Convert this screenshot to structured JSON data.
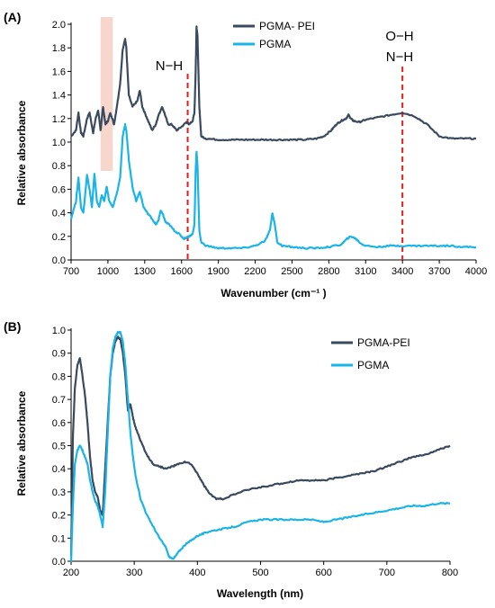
{
  "colors": {
    "pgma_pei": "#3a4a5e",
    "pgma": "#1ab4e8",
    "marker": "#e01e1e",
    "highlight": "#f7d7cc"
  },
  "chart_data": [
    {
      "type": "line",
      "panel_label": "(A)",
      "xlabel": "Wavenumber (cm⁻¹ )",
      "ylabel": "Relative absorbance",
      "xlim": [
        700,
        4000
      ],
      "ylim": [
        0.0,
        2.0
      ],
      "xticks": [
        "700",
        "1000",
        "1300",
        "1600",
        "1900",
        "2200",
        "2500",
        "2800",
        "3100",
        "3400",
        "3700",
        "4000"
      ],
      "yticks": [
        "0.0",
        "0.2",
        "0.4",
        "0.6",
        "0.8",
        "1.0",
        "1.2",
        "1.4",
        "1.6",
        "1.8",
        "2.0"
      ],
      "legend": [
        "PGMA- PEI",
        "PGMA"
      ],
      "annotations": [
        {
          "text": "N−H",
          "x": 1650
        },
        {
          "text": "O−H",
          "x": 3400
        },
        {
          "text": "N−H",
          "x": 3400
        }
      ],
      "highlight_band": [
        940,
        1040
      ],
      "series": [
        {
          "name": "PGMA- PEI",
          "x": [
            700,
            740,
            760,
            780,
            800,
            830,
            850,
            880,
            900,
            920,
            940,
            960,
            980,
            1000,
            1020,
            1050,
            1080,
            1100,
            1120,
            1140,
            1150,
            1170,
            1200,
            1240,
            1260,
            1280,
            1320,
            1360,
            1390,
            1410,
            1440,
            1460,
            1490,
            1520,
            1560,
            1600,
            1640,
            1660,
            1690,
            1705,
            1715,
            1722,
            1730,
            1745,
            1760,
            1800,
            1900,
            2000,
            2100,
            2200,
            2300,
            2400,
            2500,
            2600,
            2700,
            2760,
            2820,
            2860,
            2900,
            2940,
            2960,
            2980,
            3000,
            3050,
            3100,
            3200,
            3300,
            3400,
            3500,
            3600,
            3700,
            3800,
            3900,
            4000
          ],
          "y": [
            1.05,
            1.1,
            1.25,
            1.08,
            1.05,
            1.2,
            1.25,
            1.08,
            1.2,
            1.27,
            1.1,
            1.3,
            1.15,
            1.18,
            1.25,
            1.15,
            1.35,
            1.5,
            1.78,
            1.88,
            1.8,
            1.4,
            1.3,
            1.35,
            1.44,
            1.3,
            1.2,
            1.1,
            1.15,
            1.22,
            1.3,
            1.25,
            1.15,
            1.15,
            1.1,
            1.13,
            1.17,
            1.15,
            1.18,
            1.25,
            1.6,
            1.98,
            1.9,
            1.3,
            1.05,
            1.03,
            1.02,
            1.02,
            1.02,
            1.02,
            1.02,
            1.02,
            1.02,
            1.02,
            1.03,
            1.05,
            1.1,
            1.15,
            1.18,
            1.2,
            1.23,
            1.2,
            1.18,
            1.17,
            1.19,
            1.21,
            1.23,
            1.25,
            1.22,
            1.15,
            1.05,
            1.03,
            1.03,
            1.03
          ]
        },
        {
          "name": "PGMA",
          "x": [
            700,
            740,
            760,
            780,
            800,
            830,
            850,
            870,
            890,
            910,
            930,
            950,
            970,
            990,
            1010,
            1040,
            1070,
            1100,
            1120,
            1140,
            1150,
            1170,
            1200,
            1230,
            1260,
            1290,
            1320,
            1360,
            1390,
            1410,
            1430,
            1450,
            1470,
            1500,
            1540,
            1580,
            1620,
            1660,
            1690,
            1705,
            1715,
            1722,
            1730,
            1745,
            1760,
            1800,
            1900,
            2000,
            2100,
            2200,
            2280,
            2320,
            2340,
            2360,
            2380,
            2420,
            2500,
            2600,
            2700,
            2800,
            2900,
            2950,
            2980,
            3020,
            3060,
            3100,
            3200,
            3300,
            3400,
            3500,
            3600,
            3700,
            3800,
            3900,
            4000
          ],
          "y": [
            0.35,
            0.5,
            0.7,
            0.45,
            0.4,
            0.72,
            0.6,
            0.45,
            0.73,
            0.5,
            0.45,
            0.55,
            0.5,
            0.62,
            0.5,
            0.45,
            0.55,
            0.7,
            1.05,
            1.15,
            1.1,
            0.85,
            0.62,
            0.5,
            0.58,
            0.45,
            0.4,
            0.35,
            0.3,
            0.33,
            0.42,
            0.38,
            0.32,
            0.3,
            0.25,
            0.22,
            0.18,
            0.2,
            0.22,
            0.3,
            0.75,
            0.92,
            0.8,
            0.25,
            0.15,
            0.12,
            0.1,
            0.1,
            0.1,
            0.12,
            0.16,
            0.25,
            0.4,
            0.3,
            0.15,
            0.12,
            0.11,
            0.1,
            0.1,
            0.11,
            0.13,
            0.18,
            0.2,
            0.18,
            0.14,
            0.12,
            0.11,
            0.12,
            0.12,
            0.12,
            0.12,
            0.12,
            0.12,
            0.11,
            0.11
          ]
        }
      ]
    },
    {
      "type": "line",
      "panel_label": "(B)",
      "xlabel": "Wavelength (nm)",
      "ylabel": "Relative absorbance",
      "xlim": [
        200,
        800
      ],
      "ylim": [
        0.0,
        1.0
      ],
      "xticks": [
        "200",
        "300",
        "400",
        "500",
        "600",
        "700",
        "800"
      ],
      "yticks": [
        "0.0",
        "0.1",
        "0.2",
        "0.3",
        "0.4",
        "0.5",
        "0.6",
        "0.7",
        "0.8",
        "0.9",
        "1.0"
      ],
      "legend": [
        "PGMA-PEI",
        "PGMA"
      ],
      "series": [
        {
          "name": "PGMA-PEI",
          "x": [
            200,
            203,
            206,
            210,
            214,
            218,
            222,
            226,
            230,
            234,
            238,
            242,
            246,
            250,
            254,
            258,
            262,
            266,
            270,
            274,
            278,
            282,
            286,
            290,
            294,
            298,
            302,
            310,
            320,
            330,
            340,
            350,
            360,
            370,
            380,
            390,
            400,
            410,
            420,
            430,
            440,
            460,
            480,
            500,
            520,
            540,
            560,
            580,
            600,
            620,
            640,
            660,
            680,
            700,
            720,
            740,
            760,
            780,
            800
          ],
          "y": [
            0.02,
            0.55,
            0.75,
            0.85,
            0.88,
            0.8,
            0.72,
            0.6,
            0.45,
            0.35,
            0.3,
            0.28,
            0.22,
            0.2,
            0.4,
            0.6,
            0.8,
            0.9,
            0.95,
            0.97,
            0.96,
            0.9,
            0.8,
            0.65,
            0.68,
            0.62,
            0.58,
            0.52,
            0.46,
            0.42,
            0.41,
            0.4,
            0.41,
            0.42,
            0.43,
            0.42,
            0.38,
            0.33,
            0.29,
            0.27,
            0.27,
            0.29,
            0.31,
            0.32,
            0.33,
            0.34,
            0.35,
            0.35,
            0.35,
            0.36,
            0.37,
            0.38,
            0.39,
            0.41,
            0.43,
            0.45,
            0.46,
            0.48,
            0.5
          ]
        },
        {
          "name": "PGMA",
          "x": [
            200,
            203,
            206,
            210,
            214,
            218,
            222,
            226,
            230,
            234,
            238,
            242,
            246,
            250,
            254,
            258,
            262,
            266,
            270,
            274,
            278,
            282,
            286,
            290,
            294,
            298,
            302,
            310,
            320,
            330,
            340,
            350,
            355,
            360,
            365,
            370,
            380,
            390,
            400,
            410,
            420,
            440,
            460,
            480,
            500,
            520,
            540,
            560,
            580,
            600,
            620,
            640,
            660,
            680,
            700,
            720,
            740,
            760,
            780,
            800
          ],
          "y": [
            0.0,
            0.25,
            0.42,
            0.48,
            0.5,
            0.48,
            0.45,
            0.42,
            0.35,
            0.3,
            0.26,
            0.24,
            0.2,
            0.15,
            0.3,
            0.55,
            0.8,
            0.92,
            0.97,
            0.99,
            0.99,
            0.95,
            0.85,
            0.7,
            0.55,
            0.45,
            0.37,
            0.27,
            0.2,
            0.15,
            0.1,
            0.06,
            0.02,
            0.01,
            0.02,
            0.04,
            0.07,
            0.09,
            0.11,
            0.12,
            0.13,
            0.14,
            0.15,
            0.17,
            0.18,
            0.18,
            0.18,
            0.18,
            0.18,
            0.17,
            0.18,
            0.19,
            0.2,
            0.21,
            0.22,
            0.23,
            0.24,
            0.24,
            0.25,
            0.25
          ]
        }
      ]
    }
  ]
}
